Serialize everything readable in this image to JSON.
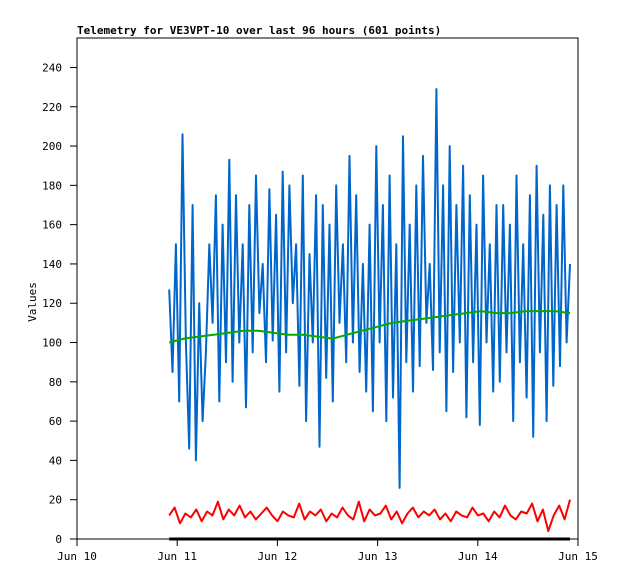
{
  "chart_data": {
    "type": "line",
    "title": "Telemetry for VE3VPT-10 over last 96 hours (601 points)",
    "xlabel": "",
    "ylabel": "Values",
    "xlim_days": [
      0,
      5
    ],
    "x_ticks": [
      {
        "value": 0,
        "label": "Jun 10"
      },
      {
        "value": 1,
        "label": "Jun 11"
      },
      {
        "value": 2,
        "label": "Jun 12"
      },
      {
        "value": 3,
        "label": "Jun 13"
      },
      {
        "value": 4,
        "label": "Jun 14"
      },
      {
        "value": 5,
        "label": "Jun 15"
      }
    ],
    "ylim": [
      0,
      255
    ],
    "y_ticks": [
      0,
      20,
      40,
      60,
      80,
      100,
      120,
      140,
      160,
      180,
      200,
      220,
      240
    ],
    "grid": false,
    "series": [
      {
        "name": "blue",
        "color": "#0066cc",
        "x_start": 0.92,
        "x_end": 4.92,
        "values": [
          127,
          85,
          150,
          70,
          206,
          100,
          46,
          170,
          40,
          120,
          60,
          95,
          150,
          110,
          175,
          70,
          160,
          90,
          193,
          80,
          175,
          100,
          150,
          67,
          170,
          95,
          185,
          115,
          140,
          90,
          178,
          101,
          165,
          75,
          187,
          95,
          180,
          120,
          150,
          78,
          185,
          60,
          145,
          100,
          175,
          47,
          170,
          82,
          160,
          70,
          180,
          110,
          150,
          90,
          195,
          100,
          175,
          85,
          140,
          75,
          160,
          65,
          200,
          100,
          170,
          60,
          185,
          72,
          150,
          26,
          205,
          90,
          160,
          75,
          180,
          88,
          195,
          110,
          140,
          86,
          229,
          95,
          180,
          65,
          200,
          85,
          170,
          100,
          190,
          62,
          175,
          90,
          160,
          58,
          185,
          100,
          150,
          75,
          170,
          80,
          170,
          95,
          160,
          60,
          185,
          90,
          150,
          72,
          175,
          52,
          190,
          95,
          165,
          60,
          180,
          78,
          170,
          88,
          180,
          100,
          140
        ]
      },
      {
        "name": "green",
        "color": "#00aa00",
        "x_start": 0.92,
        "x_end": 4.92,
        "values": [
          100,
          102,
          103,
          104,
          105,
          106,
          106,
          105,
          104,
          104,
          103,
          102,
          104,
          106,
          108,
          110,
          111,
          112,
          113,
          114,
          115,
          116,
          115,
          115,
          116,
          116,
          116,
          115
        ]
      },
      {
        "name": "red",
        "color": "#ff0000",
        "x_start": 0.92,
        "x_end": 4.92,
        "values": [
          12,
          16,
          8,
          13,
          11,
          15,
          9,
          14,
          12,
          19,
          10,
          15,
          12,
          17,
          11,
          14,
          10,
          13,
          16,
          12,
          9,
          14,
          12,
          11,
          18,
          10,
          14,
          12,
          15,
          9,
          13,
          11,
          16,
          12,
          10,
          19,
          9,
          15,
          12,
          13,
          17,
          10,
          14,
          8,
          13,
          16,
          11,
          14,
          12,
          15,
          10,
          13,
          9,
          14,
          12,
          11,
          16,
          12,
          13,
          9,
          14,
          11,
          17,
          12,
          10,
          14,
          13,
          18,
          9,
          15,
          4,
          12,
          17,
          10,
          20
        ]
      },
      {
        "name": "black",
        "color": "#000000",
        "x_start": 0.92,
        "x_end": 4.92,
        "values": [
          0,
          0
        ]
      }
    ]
  }
}
